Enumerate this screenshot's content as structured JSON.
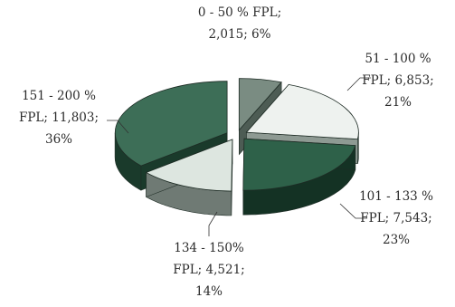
{
  "chart_data": {
    "type": "pie",
    "style": "3d-exploded",
    "categories": [
      "0 - 50 % FPL",
      "51 - 100 % FPL",
      "101 - 133 % FPL",
      "134 - 150% FPL",
      "151 - 200 % FPL"
    ],
    "values": [
      2015,
      6853,
      7543,
      4521,
      11803
    ],
    "percentages": [
      6,
      21,
      23,
      14,
      36
    ],
    "data_labels": [
      [
        "0 - 50 % FPL;",
        "2,015; 6%"
      ],
      [
        "51 - 100 %",
        "FPL; 6,853;",
        "21%"
      ],
      [
        "101 - 133 %",
        "FPL; 7,543;",
        "23%"
      ],
      [
        "134 - 150%",
        "FPL; 4,521;",
        "14%"
      ],
      [
        "151 - 200 %",
        "FPL; 11,803;",
        "36%"
      ]
    ],
    "colors": [
      "#7a8c82",
      "#eef2ef",
      "#2e6149",
      "#dde6e0",
      "#3d6e57"
    ],
    "side_colors": [
      "#4d5c54",
      "#8e9a93",
      "#143224",
      "#6f7a74",
      "#1a3a2b"
    ],
    "title": "",
    "legend": "none"
  }
}
